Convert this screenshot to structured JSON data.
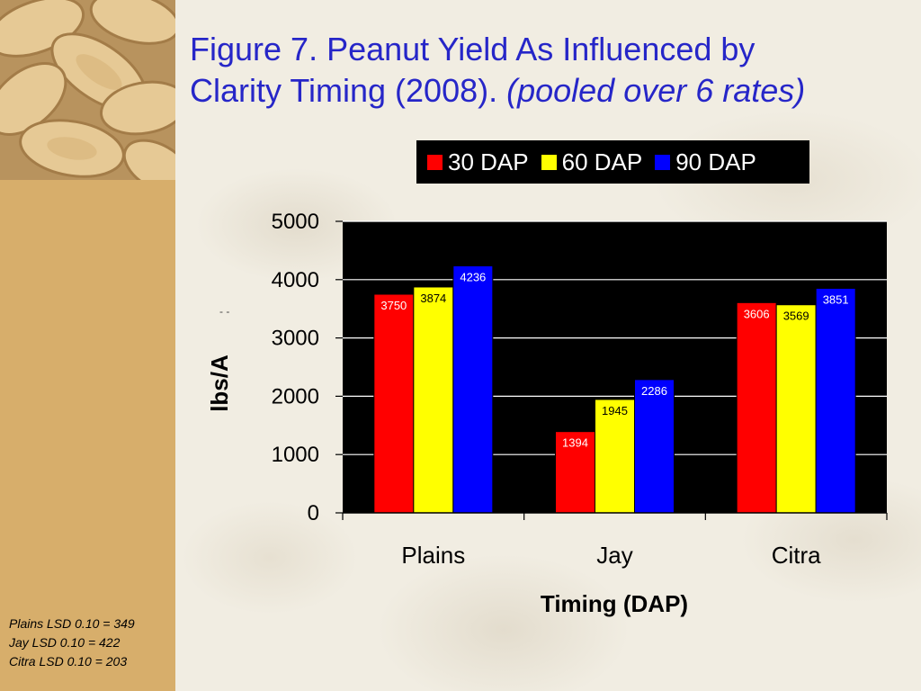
{
  "slide": {
    "title_line1": "Figure 7.  Peanut Yield As Influenced by",
    "title_line2": "Clarity Timing (2008). ",
    "title_italic": "(pooled over 6 rates)",
    "lsd_notes": [
      "Plains LSD 0.10 = 349",
      "Jay LSD 0.10 = 422",
      "Citra LSD 0.10 = 203"
    ],
    "stray_mark": "- -"
  },
  "colors": {
    "title": "#2626c8",
    "plot_bg": "#000000",
    "panel": "#d7ae6b"
  },
  "chart_data": {
    "type": "bar",
    "title": "",
    "xlabel": "Timing (DAP)",
    "ylabel": "lbs/A",
    "ylim": [
      0,
      5000
    ],
    "yticks": [
      "0",
      "1000",
      "2000",
      "3000",
      "4000",
      "5000"
    ],
    "categories": [
      "Plains",
      "Jay",
      "Citra"
    ],
    "grid": true,
    "legend_position": "top",
    "series": [
      {
        "name": "30 DAP",
        "color": "#ff0000",
        "values": [
          3750,
          1394,
          3606
        ],
        "labels": [
          "3750",
          "1394",
          "3606"
        ],
        "label_color": "#ffffff"
      },
      {
        "name": "60 DAP",
        "color": "#ffff00",
        "values": [
          3874,
          1945,
          3569
        ],
        "labels": [
          "3874",
          "1945",
          "3569"
        ],
        "label_color": "#000000"
      },
      {
        "name": "90 DAP",
        "color": "#0000ff",
        "values": [
          4236,
          2286,
          3851
        ],
        "labels": [
          "4236",
          "2286",
          "3851"
        ],
        "label_color": "#ffffff"
      }
    ]
  }
}
